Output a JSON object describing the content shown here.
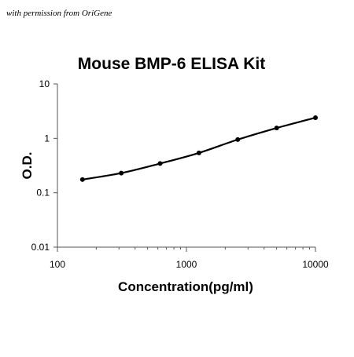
{
  "watermark": "with permission from OriGene",
  "colors": {
    "background": "#ffffff",
    "axis": "#555555",
    "series": "#000000"
  },
  "chart_data": {
    "type": "scatter",
    "title": "Mouse BMP-6 ELISA Kit",
    "xlabel": "Concentration(pg/ml)",
    "ylabel": "O.D.",
    "xscale": "log",
    "yscale": "log",
    "xlim": [
      100,
      10000
    ],
    "ylim": [
      0.01,
      10
    ],
    "xticks": [
      "100",
      "1000",
      "10000"
    ],
    "yticks": [
      "10",
      "1",
      "0.1",
      "0.01"
    ],
    "grid": false,
    "legend": "none",
    "series": [
      {
        "x": [
          156.25,
          312.5,
          625,
          1250,
          2500,
          5000,
          10000
        ],
        "y": [
          0.175,
          0.23,
          0.345,
          0.54,
          0.95,
          1.55,
          2.4
        ],
        "marker": "circle",
        "fit_line": true
      }
    ]
  }
}
